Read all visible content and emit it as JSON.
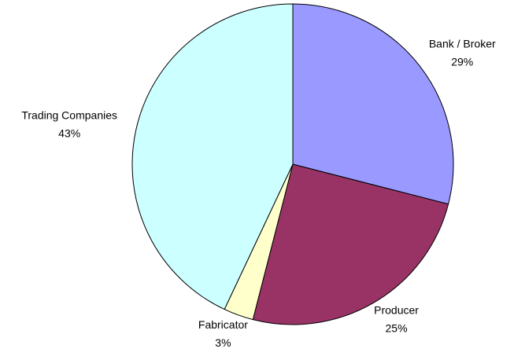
{
  "chart_data": {
    "type": "pie",
    "categories": [
      "Bank / Broker",
      "Producer",
      "Fabricator",
      "Trading Companies"
    ],
    "values": [
      29,
      25,
      3,
      43
    ],
    "value_labels": [
      "29%",
      "25%",
      "3%",
      "43%"
    ],
    "colors": [
      "#9999ff",
      "#993366",
      "#ffffcc",
      "#ccffff"
    ]
  }
}
